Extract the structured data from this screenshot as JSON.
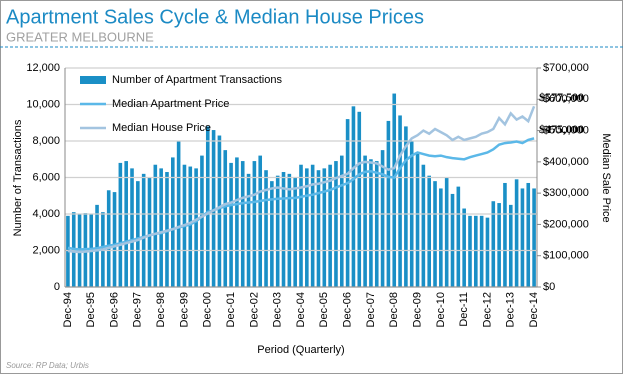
{
  "chart_data": {
    "type": "bar",
    "title": "Apartment Sales Cycle & Median House Prices",
    "subtitle": "GREATER MELBOURNE",
    "source": "Source: RP Data; Urbis",
    "xlabel": "Period (Quarterly)",
    "ylabel": "Number of Transactions",
    "y2label": "Median Sale Price",
    "categories": [
      "Dec-94",
      null,
      null,
      null,
      "Dec-95",
      null,
      null,
      null,
      "Dec-96",
      null,
      null,
      null,
      "Dec-97",
      null,
      null,
      null,
      "Dec-98",
      null,
      null,
      null,
      "Dec-99",
      null,
      null,
      null,
      "Dec-00",
      null,
      null,
      null,
      "Dec-01",
      null,
      null,
      null,
      "Dec-02",
      null,
      null,
      null,
      "Dec-03",
      null,
      null,
      null,
      "Dec-04",
      null,
      null,
      null,
      "Dec-05",
      null,
      null,
      null,
      "Dec-06",
      null,
      null,
      null,
      "Dec-07",
      null,
      null,
      null,
      "Dec-08",
      null,
      null,
      null,
      "Dec-09",
      null,
      null,
      null,
      "Dec-10",
      null,
      null,
      null,
      "Dec-11",
      null,
      null,
      null,
      "Dec-12",
      null,
      null,
      null,
      "Dec-13",
      null,
      null,
      null,
      "Dec-14"
    ],
    "series": [
      {
        "name": "Number of Apartment Transactions",
        "type": "bar",
        "color": "#1a8fc6",
        "values": [
          3900,
          4100,
          4000,
          4050,
          4000,
          4500,
          4100,
          5300,
          5200,
          6800,
          6900,
          6500,
          5800,
          6200,
          6000,
          6700,
          6500,
          6300,
          7100,
          8000,
          6700,
          6600,
          6500,
          7200,
          8800,
          8600,
          8300,
          7500,
          6800,
          7100,
          6900,
          6200,
          6900,
          7200,
          6400,
          5800,
          6100,
          6300,
          6200,
          6000,
          6700,
          6500,
          6700,
          6400,
          6500,
          6700,
          6900,
          7200,
          9200,
          9900,
          9600,
          7200,
          7000,
          6900,
          7500,
          9100,
          10600,
          9400,
          8800,
          8000,
          7300,
          6700,
          6100,
          5800,
          5400,
          6000,
          5100,
          5500,
          4300,
          3900,
          3900,
          3900,
          3800,
          4700,
          4600,
          5700,
          4500,
          5900,
          5400,
          5700,
          5400
        ]
      },
      {
        "name": "Median Apartment Price",
        "type": "line",
        "axis": "y2",
        "color": "#5bb8e8",
        "values": [
          125000,
          122000,
          120000,
          121000,
          122000,
          124000,
          128000,
          132000,
          135000,
          140000,
          145000,
          150000,
          155000,
          160000,
          165000,
          170000,
          172000,
          178000,
          185000,
          190000,
          195000,
          200000,
          210000,
          225000,
          240000,
          245000,
          252000,
          258000,
          262000,
          265000,
          268000,
          270000,
          272000,
          275000,
          278000,
          280000,
          282000,
          283000,
          284000,
          285000,
          288000,
          292000,
          295000,
          300000,
          305000,
          310000,
          318000,
          325000,
          332000,
          345000,
          360000,
          368000,
          370000,
          365000,
          360000,
          352000,
          350000,
          380000,
          405000,
          420000,
          430000,
          425000,
          420000,
          418000,
          420000,
          415000,
          412000,
          410000,
          408000,
          415000,
          420000,
          425000,
          430000,
          440000,
          455000,
          460000,
          462000,
          465000,
          460000,
          470000,
          475000
        ]
      },
      {
        "name": "Median House Price",
        "type": "line",
        "axis": "y2",
        "color": "#a3c4e0",
        "values": [
          115000,
          113000,
          112000,
          113000,
          115000,
          117000,
          120000,
          125000,
          130000,
          135000,
          140000,
          145000,
          150000,
          158000,
          165000,
          170000,
          175000,
          180000,
          185000,
          192000,
          198000,
          205000,
          215000,
          225000,
          235000,
          245000,
          255000,
          265000,
          270000,
          278000,
          285000,
          290000,
          295000,
          305000,
          310000,
          315000,
          318000,
          315000,
          312000,
          315000,
          318000,
          322000,
          328000,
          330000,
          335000,
          340000,
          348000,
          355000,
          362000,
          380000,
          395000,
          400000,
          398000,
          395000,
          385000,
          375000,
          380000,
          420000,
          450000,
          475000,
          485000,
          500000,
          490000,
          505000,
          495000,
          485000,
          470000,
          480000,
          470000,
          475000,
          480000,
          490000,
          495000,
          505000,
          540000,
          520000,
          555000,
          535000,
          545000,
          530000,
          577500
        ]
      }
    ],
    "annotations": [
      {
        "label": "$577,500",
        "value": 577500
      },
      {
        "label": "$475,000",
        "value": 475000
      }
    ],
    "ylim": [
      0,
      12000
    ],
    "yticks": [
      0,
      {
        "value": 2000,
        "label": "2,000"
      },
      {
        "value": 4000,
        "label": "4,000"
      },
      {
        "value": 6000,
        "label": "6,000"
      },
      {
        "value": 8000,
        "label": "8,000"
      },
      {
        "value": 10000,
        "label": "10,000"
      },
      {
        "value": 12000,
        "label": "12,000"
      }
    ],
    "y2lim": [
      0,
      700000
    ],
    "y2ticks": [
      {
        "value": 0,
        "label": "$0"
      },
      {
        "value": 100000,
        "label": "$100,000"
      },
      {
        "value": 200000,
        "label": "$200,000"
      },
      {
        "value": 300000,
        "label": "$300,000"
      },
      {
        "value": 400000,
        "label": "$400,000"
      },
      {
        "value": 500000,
        "label": "$500,000"
      },
      {
        "value": 600000,
        "label": "$600,000"
      },
      {
        "value": 700000,
        "label": "$700,000"
      }
    ],
    "grid": true,
    "legend": "upper left"
  }
}
